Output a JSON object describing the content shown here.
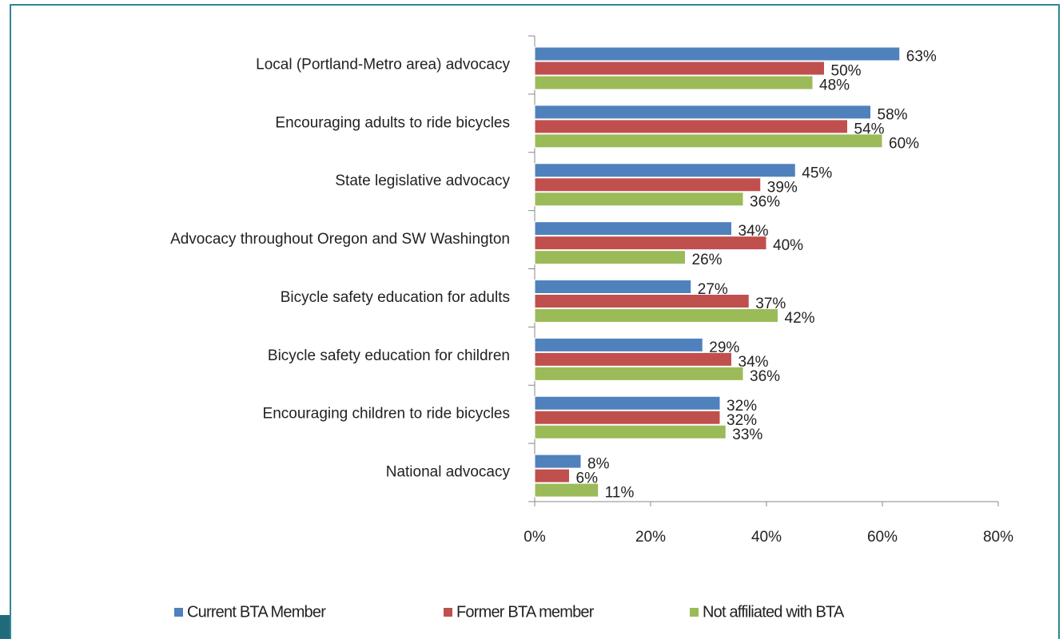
{
  "chart_data": {
    "type": "bar",
    "orientation": "horizontal",
    "categories": [
      "Local (Portland-Metro area) advocacy",
      "Encouraging adults  to ride bicycles",
      "State legislative  advocacy",
      "Advocacy throughout  Oregon and SW Washington",
      "Bicycle  safety education for adults",
      "Bicycle  safety education for children",
      "Encouraging children  to ride bicycles",
      "National advocacy"
    ],
    "series": [
      {
        "name": "Current BTA Member",
        "color": "#4f81bd",
        "values": [
          63,
          58,
          45,
          34,
          27,
          29,
          32,
          8
        ],
        "value_labels": [
          "63%",
          "58%",
          "45%",
          "34%",
          "27%",
          "29%",
          "32%",
          "8%"
        ]
      },
      {
        "name": "Former BTA member",
        "color": "#c0504d",
        "values": [
          50,
          54,
          39,
          40,
          37,
          34,
          32,
          6
        ],
        "value_labels": [
          "50%",
          "54%",
          "39%",
          "40%",
          "37%",
          "34%",
          "32%",
          "6%"
        ]
      },
      {
        "name": "Not affiliated with BTA",
        "color": "#9bbb59",
        "values": [
          48,
          60,
          36,
          26,
          42,
          36,
          33,
          11
        ],
        "value_labels": [
          "48%",
          "60%",
          "36%",
          "26%",
          "42%",
          "36%",
          "33%",
          "11%"
        ]
      }
    ],
    "xlim": [
      0,
      80
    ],
    "xticks": [
      {
        "value": 0,
        "label": "0%"
      },
      {
        "value": 20,
        "label": "20%"
      },
      {
        "value": 40,
        "label": "40%"
      },
      {
        "value": 60,
        "label": "60%"
      },
      {
        "value": 80,
        "label": "80%"
      }
    ],
    "legend": "bottom"
  }
}
